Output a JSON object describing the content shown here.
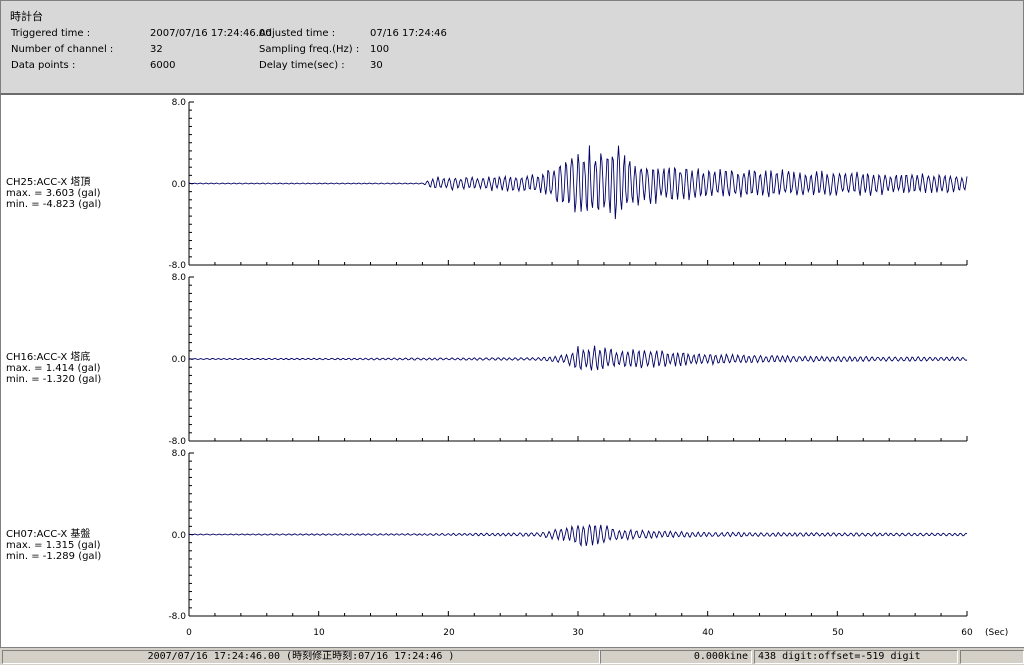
{
  "window": {
    "title": "時計台"
  },
  "header": {
    "triggered_label": "Triggered time :",
    "triggered_value": "2007/07/16 17:24:46.00",
    "adjusted_label": "Adjusted time :",
    "adjusted_value": "07/16 17:24:46",
    "channels_label": "Number of channel :",
    "channels_value": "32",
    "sampling_label": "Sampling freq.(Hz) :",
    "sampling_value": "100",
    "points_label": "Data points :",
    "points_value": "6000",
    "delay_label": "Delay time(sec) :",
    "delay_value": "30"
  },
  "x_axis": {
    "unit": "(Sec)",
    "ticks": [
      "0",
      "10",
      "20",
      "30",
      "40",
      "50",
      "60"
    ],
    "min": 0,
    "max": 60
  },
  "charts": [
    {
      "name": "CH25:ACC-X 塔頂",
      "max_text": "max. = 3.603 (gal)",
      "min_text": "min. = -4.823 (gal)",
      "ytick_top": "8.0",
      "ytick_mid": "0.0",
      "ytick_bot": "-8.0"
    },
    {
      "name": "CH16:ACC-X 塔底",
      "max_text": "max. = 1.414 (gal)",
      "min_text": "min. = -1.320 (gal)",
      "ytick_top": "8.0",
      "ytick_mid": "0.0",
      "ytick_bot": "-8.0"
    },
    {
      "name": "CH07:ACC-X 基盤",
      "max_text": "max. = 1.315 (gal)",
      "min_text": "min. = -1.289 (gal)",
      "ytick_top": "8.0",
      "ytick_mid": "0.0",
      "ytick_bot": "-8.0"
    }
  ],
  "chart_data": [
    {
      "type": "line",
      "title": "CH25:ACC-X 塔頂",
      "xlabel": "(Sec)",
      "ylabel": "gal",
      "xlim": [
        0,
        60
      ],
      "ylim": [
        -8,
        8
      ],
      "series": [
        {
          "name": "CH25:ACC-X 塔頂",
          "x": [
            0,
            18,
            19,
            22,
            27,
            28,
            29,
            30,
            31,
            32,
            33,
            34,
            36,
            40,
            45,
            50,
            55,
            60
          ],
          "y": [
            0,
            0,
            0.7,
            0.6,
            1.0,
            1.8,
            3.0,
            3.2,
            -4.0,
            3.6,
            -4.8,
            2.6,
            2.0,
            1.6,
            1.4,
            1.3,
            1.1,
            0.9
          ]
        }
      ]
    },
    {
      "type": "line",
      "title": "CH16:ACC-X 塔底",
      "xlabel": "(Sec)",
      "ylabel": "gal",
      "xlim": [
        0,
        60
      ],
      "ylim": [
        -8,
        8
      ],
      "series": [
        {
          "name": "CH16:ACC-X 塔底",
          "x": [
            0,
            27,
            29,
            30,
            31,
            32,
            33,
            35,
            38,
            42,
            48,
            55,
            60
          ],
          "y": [
            0,
            0.1,
            0.4,
            1.4,
            -1.3,
            1.2,
            1.0,
            0.9,
            0.7,
            0.4,
            0.25,
            0.2,
            0.15
          ]
        }
      ]
    },
    {
      "type": "line",
      "title": "CH07:ACC-X 基盤",
      "xlabel": "(Sec)",
      "ylabel": "gal",
      "xlim": [
        0,
        60
      ],
      "ylim": [
        -8,
        8
      ],
      "series": [
        {
          "name": "CH07:ACC-X 基盤",
          "x": [
            0,
            18,
            27,
            29,
            30,
            31,
            32,
            33,
            35,
            40,
            50,
            60
          ],
          "y": [
            0,
            0.05,
            0.15,
            0.7,
            1.3,
            -1.29,
            1.0,
            0.6,
            0.4,
            0.2,
            0.15,
            0.1
          ]
        }
      ]
    }
  ],
  "colors": {
    "trace": "#000066",
    "header_bg": "#d8d8d8"
  },
  "statusbar": {
    "time_text": "2007/07/16 17:24:46.00  (時刻修正時刻:07/16 17:24:46  )",
    "velocity_text": "0.000kine",
    "digit_text": "438 digit:offset=-519 digit",
    "extra_text": ""
  }
}
